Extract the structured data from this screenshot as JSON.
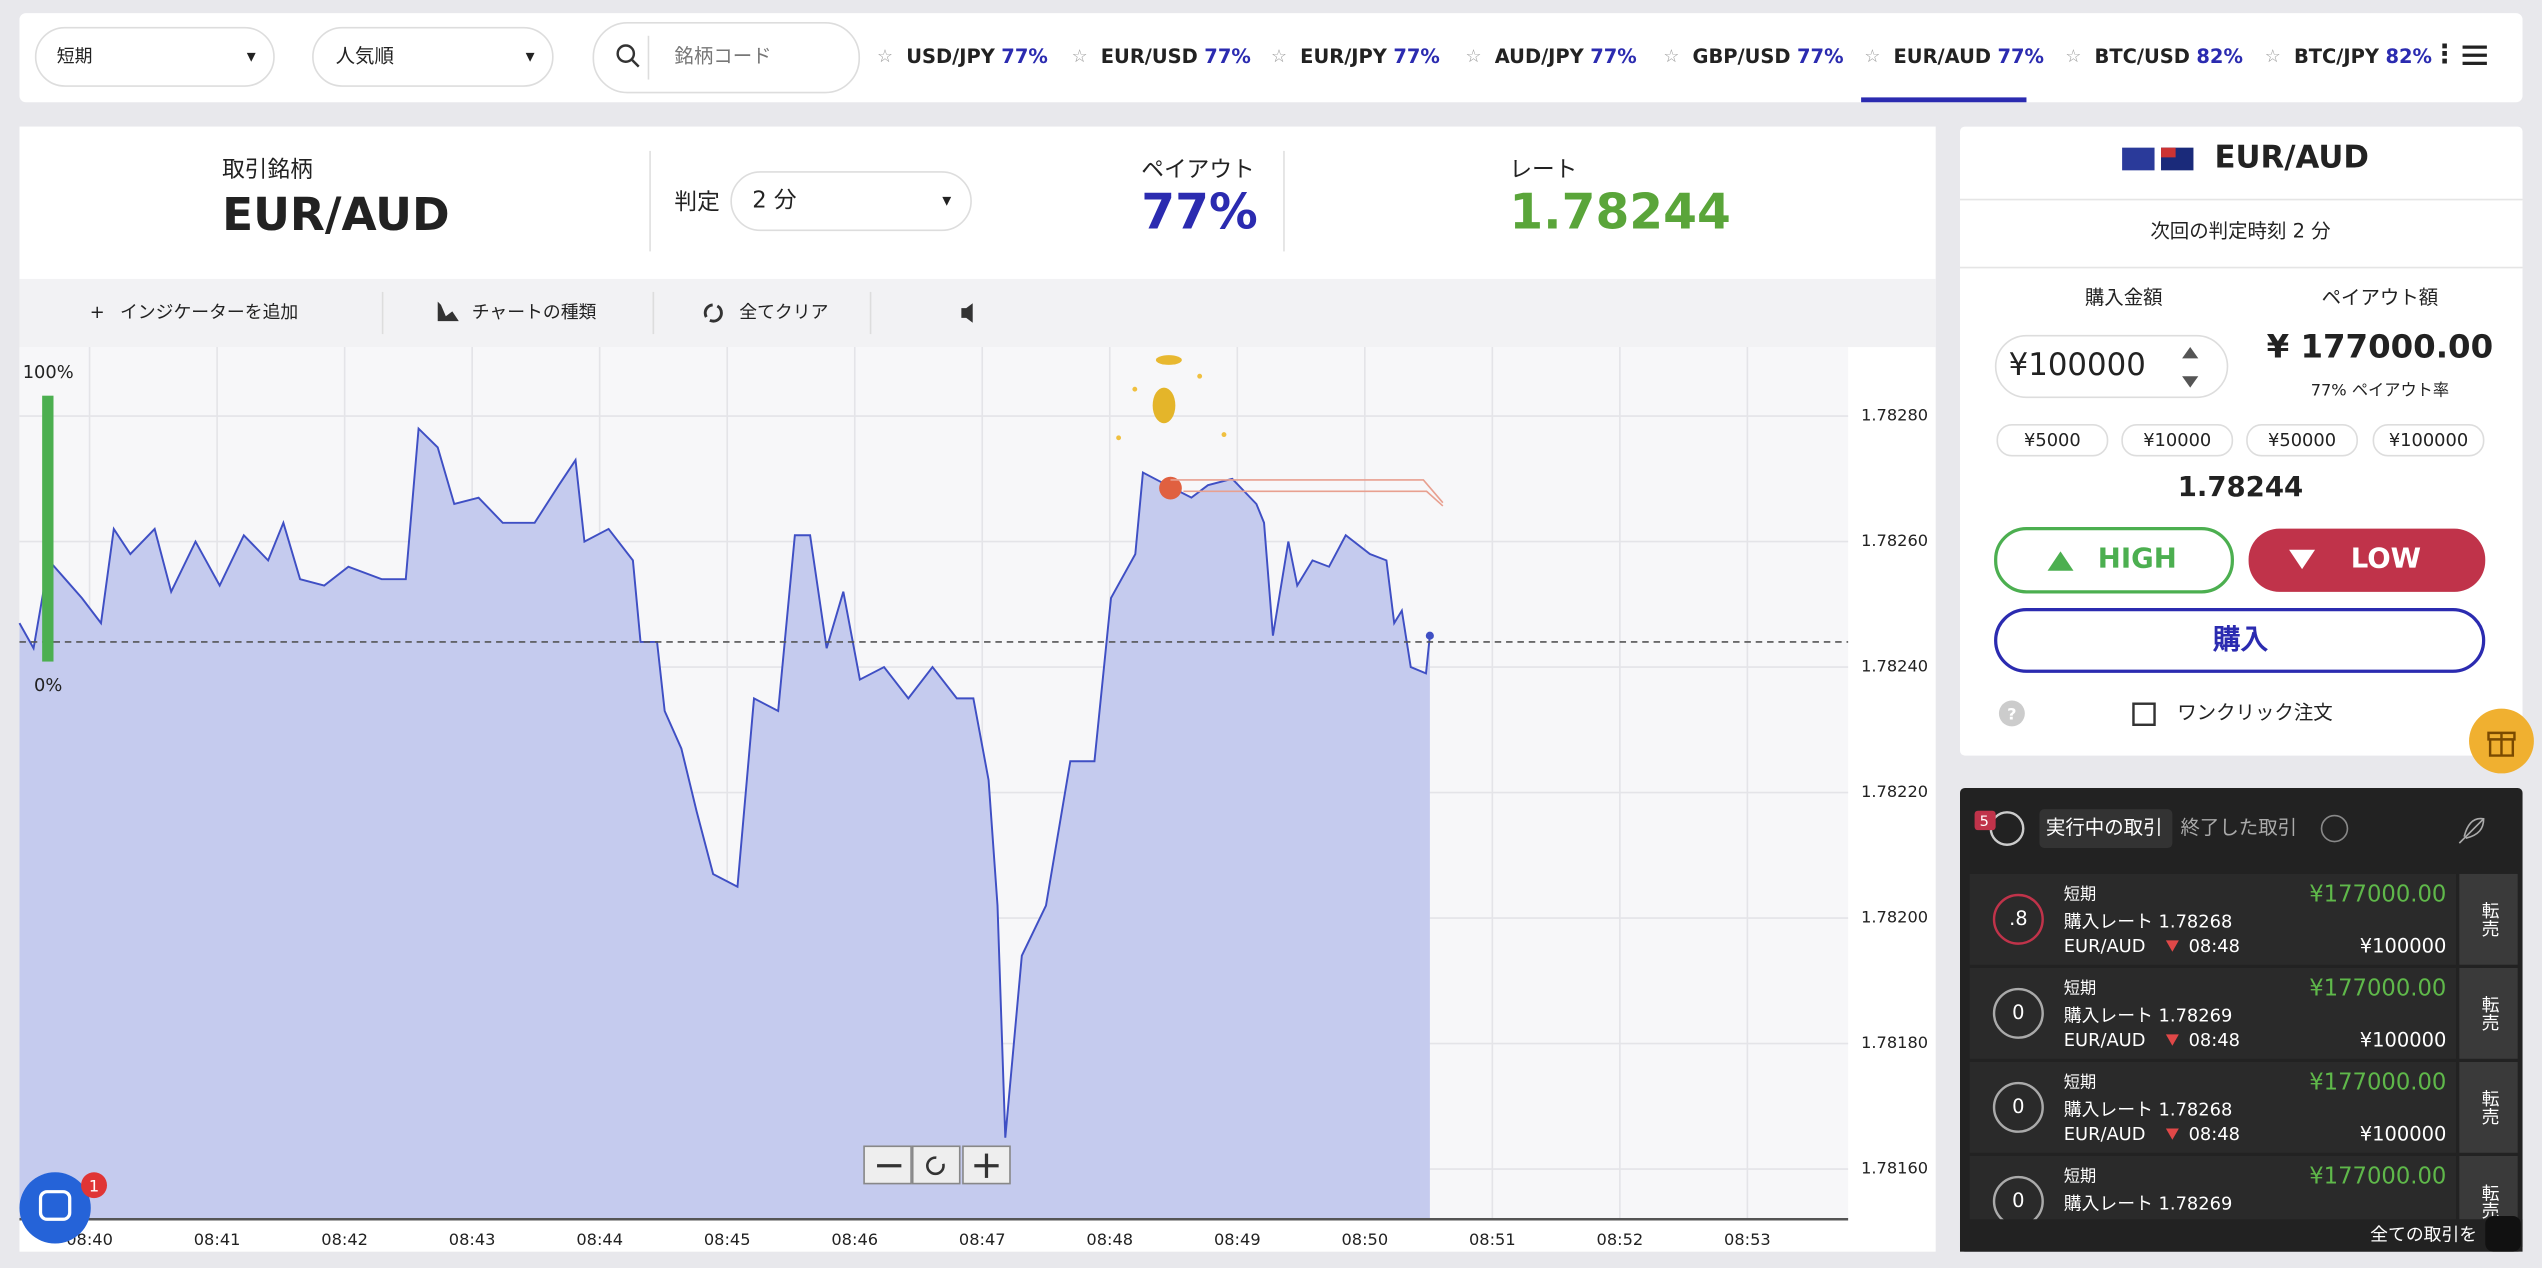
{
  "filters": {
    "term": "短期",
    "sort": "人気順",
    "search_placeholder": "銘柄コード"
  },
  "tabs": [
    {
      "pair": "USD/JPY",
      "payout": "77%"
    },
    {
      "pair": "EUR/USD",
      "payout": "77%"
    },
    {
      "pair": "EUR/JPY",
      "payout": "77%"
    },
    {
      "pair": "AUD/JPY",
      "payout": "77%"
    },
    {
      "pair": "GBP/USD",
      "payout": "77%"
    },
    {
      "pair": "EUR/AUD",
      "payout": "77%",
      "active": true
    },
    {
      "pair": "BTC/USD",
      "payout": "82%"
    },
    {
      "pair": "BTC/JPY",
      "payout": "82%"
    }
  ],
  "asset_header": {
    "asset_label": "取引銘柄",
    "asset": "EUR/AUD",
    "expiry_label": "判定",
    "expiry": "2 分",
    "payout_label": "ペイアウト",
    "payout": "77%",
    "rate_label": "レート",
    "rate": "1.78244"
  },
  "toolbar": {
    "add_indicator": "インジケーターを追加",
    "chart_type": "チャートの種類",
    "clear_all": "全てクリア"
  },
  "sentiment": {
    "top": "100%",
    "bottom": "0%"
  },
  "chart_data": {
    "type": "line",
    "x": [
      519.45,
      519.56,
      519.68,
      519.81,
      519.94,
      520.09,
      520.19,
      520.32,
      520.51,
      520.64,
      520.83,
      521.02,
      521.21,
      521.4,
      521.52,
      521.65,
      521.84,
      522.03,
      522.29,
      522.48,
      522.58,
      522.73,
      522.86,
      523.05,
      523.24,
      523.49,
      523.68,
      523.81,
      523.88,
      524.07,
      524.26,
      524.32,
      524.45,
      524.51,
      524.64,
      524.76,
      524.89,
      525.08,
      525.21,
      525.4,
      525.53,
      525.65,
      525.78,
      525.91,
      526.04,
      526.23,
      526.42,
      526.61,
      526.8,
      526.93,
      527.05,
      527.12,
      527.18,
      527.31,
      527.5,
      527.69,
      527.88,
      528.01,
      528.2,
      528.26,
      528.45,
      528.64,
      528.77,
      528.96,
      529.15,
      529.21,
      529.28,
      529.4,
      529.47,
      529.59,
      529.72,
      529.85,
      530.04,
      530.17,
      530.23,
      530.29,
      530.36,
      530.48,
      530.51
    ],
    "series": [
      {
        "color": "#3f4fc4",
        "values": [
          1.78247,
          1.78243,
          1.78257,
          1.78254,
          1.78251,
          1.78247,
          1.78262,
          1.78258,
          1.78262,
          1.78252,
          1.7826,
          1.78253,
          1.78261,
          1.78257,
          1.78263,
          1.78254,
          1.78253,
          1.78256,
          1.78254,
          1.78254,
          1.78278,
          1.78275,
          1.78266,
          1.78267,
          1.78263,
          1.78263,
          1.78269,
          1.78273,
          1.7826,
          1.78262,
          1.78257,
          1.78244,
          1.78244,
          1.78233,
          1.78227,
          1.78217,
          1.78207,
          1.78205,
          1.78235,
          1.78233,
          1.78261,
          1.78261,
          1.78243,
          1.78252,
          1.78238,
          1.7824,
          1.78235,
          1.7824,
          1.78235,
          1.78235,
          1.78222,
          1.78202,
          1.78165,
          1.78194,
          1.78202,
          1.78225,
          1.78225,
          1.78251,
          1.78258,
          1.78271,
          1.78269,
          1.78267,
          1.78269,
          1.7827,
          1.78266,
          1.78263,
          1.78245,
          1.7826,
          1.78253,
          1.78257,
          1.78256,
          1.78261,
          1.78258,
          1.78257,
          1.78247,
          1.78249,
          1.7824,
          1.78239,
          1.78245
        ]
      }
    ],
    "hline": 1.78244,
    "xlim": [
      519.45,
      533.79
    ],
    "ylim": [
      1.78152,
      1.78291
    ],
    "xticks": [
      {
        "value": 520,
        "label": "08:40"
      },
      {
        "value": 521,
        "label": "08:41"
      },
      {
        "value": 522,
        "label": "08:42"
      },
      {
        "value": 523,
        "label": "08:43"
      },
      {
        "value": 524,
        "label": "08:44"
      },
      {
        "value": 525,
        "label": "08:45"
      },
      {
        "value": 526,
        "label": "08:46"
      },
      {
        "value": 527,
        "label": "08:47"
      },
      {
        "value": 528,
        "label": "08:48"
      },
      {
        "value": 529,
        "label": "08:49"
      },
      {
        "value": 530,
        "label": "08:50"
      },
      {
        "value": 531,
        "label": "08:51"
      },
      {
        "value": 532,
        "label": "08:52"
      },
      {
        "value": 533,
        "label": "08:53"
      }
    ],
    "yticks": [
      {
        "value": 1.7828,
        "label": "1.78280"
      },
      {
        "value": 1.7826,
        "label": "1.78260"
      },
      {
        "value": 1.7824,
        "label": "1.78240"
      },
      {
        "value": 1.7822,
        "label": "1.78220"
      },
      {
        "value": 1.782,
        "label": "1.78200"
      },
      {
        "value": 1.7818,
        "label": "1.78180"
      },
      {
        "value": 1.7816,
        "label": "1.78160"
      }
    ],
    "grid": true
  },
  "order_panel": {
    "asset": "EUR/AUD",
    "next_expiry": "次回の判定時刻 2 分",
    "amount_label": "購入金額",
    "payout_label": "ペイアウト額",
    "amount": "¥100000",
    "payout": "¥ 177000.00",
    "payout_rate": "77% ペイアウト率",
    "quick_amounts": [
      "¥5000",
      "¥10000",
      "¥50000",
      "¥100000"
    ],
    "rate": "1.78244",
    "high": "HIGH",
    "low": "LOW",
    "buy": "購入",
    "one_click": "ワンクリック注文"
  },
  "trades_panel": {
    "badge": "5",
    "tab_active": "実行中の取引",
    "tab_closed": "終了した取引",
    "footer": "全ての取引を",
    "rows": [
      {
        "timer": ".8",
        "term": "短期",
        "rate": "購入レート 1.78268",
        "pair": "EUR/AUD",
        "time": "08:48",
        "payout": "¥177000.00",
        "amount": "¥100000",
        "resale": "転売"
      },
      {
        "timer": "0",
        "term": "短期",
        "rate": "購入レート 1.78269",
        "pair": "EUR/AUD",
        "time": "08:48",
        "payout": "¥177000.00",
        "amount": "¥100000",
        "resale": "転売"
      },
      {
        "timer": "0",
        "term": "短期",
        "rate": "購入レート 1.78268",
        "pair": "EUR/AUD",
        "time": "08:48",
        "payout": "¥177000.00",
        "amount": "¥100000",
        "resale": "転売"
      },
      {
        "timer": "0",
        "term": "短期",
        "rate": "購入レート 1.78269",
        "payout": "¥177000.00",
        "resale": "転売"
      }
    ]
  },
  "chat_badge": "1"
}
